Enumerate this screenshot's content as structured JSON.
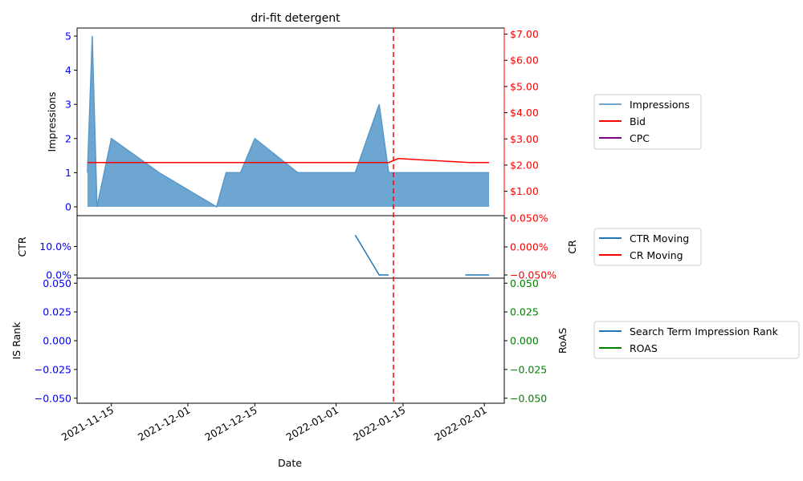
{
  "chart_data": [
    {
      "type": "area",
      "title": "dri-fit detergent",
      "ylabel_left": "Impressions",
      "y_left_ticks": [
        "0",
        "1",
        "2",
        "3",
        "4",
        "5"
      ],
      "y_right_ticks": [
        "$1.00",
        "$2.00",
        "$3.00",
        "$4.00",
        "$5.00",
        "$6.00",
        "$7.00"
      ],
      "series": [
        {
          "name": "Impressions",
          "color": "#6ca6d1",
          "axis": "left",
          "x": [
            "2021-11-10",
            "2021-11-11",
            "2021-11-12",
            "2021-11-15",
            "2021-11-25",
            "2021-12-07",
            "2021-12-09",
            "2021-12-12",
            "2021-12-15",
            "2021-12-24",
            "2022-01-05",
            "2022-01-10",
            "2022-01-12",
            "2022-01-28",
            "2022-02-02"
          ],
          "y": [
            1,
            5,
            0,
            2,
            1,
            0,
            1,
            1,
            2,
            1,
            1,
            3,
            1,
            1,
            1
          ]
        },
        {
          "name": "Bid",
          "color": "#ff0000",
          "axis": "right",
          "x": [
            "2021-11-10",
            "2022-01-12",
            "2022-01-14",
            "2022-01-29",
            "2022-02-02"
          ],
          "y": [
            2.1,
            2.1,
            2.25,
            2.1,
            2.1
          ]
        },
        {
          "name": "CPC",
          "color": "#800080",
          "axis": "right",
          "x": [],
          "y": []
        }
      ],
      "vline": {
        "x": "2022-01-13",
        "color": "#ff0000",
        "style": "dashed"
      }
    },
    {
      "type": "line",
      "ylabel_left": "CTR",
      "ylabel_right": "CR",
      "y_left_ticks": [
        "0.0%",
        "10.0%"
      ],
      "y_right_ticks": [
        "−0.050%",
        "0.000%",
        "0.050%"
      ],
      "series": [
        {
          "name": "CTR Moving",
          "color": "#1f77b4",
          "axis": "left",
          "segments": [
            {
              "x": [
                "2022-01-05",
                "2022-01-10",
                "2022-01-12"
              ],
              "y": [
                0.14,
                0.0,
                0.0
              ]
            },
            {
              "x": [
                "2022-01-28",
                "2022-02-02"
              ],
              "y": [
                0.0,
                0.0
              ]
            }
          ]
        },
        {
          "name": "CR Moving",
          "color": "#ff0000",
          "axis": "right",
          "x": [],
          "y": []
        }
      ]
    },
    {
      "type": "line",
      "ylabel_left": "IS Rank",
      "ylabel_right": "RoAS",
      "y_left_ticks": [
        "−0.050",
        "−0.025",
        "0.000",
        "0.025",
        "0.050"
      ],
      "y_right_ticks": [
        "−0.050",
        "−0.025",
        "0.000",
        "0.025",
        "0.050"
      ],
      "series": [
        {
          "name": "Search Term Impression Rank",
          "color": "#1f77b4",
          "x": [],
          "y": []
        },
        {
          "name": "ROAS",
          "color": "#008000",
          "x": [],
          "y": []
        }
      ]
    }
  ],
  "xlabel": "Date",
  "x_ticks": [
    "2021-11-15",
    "2021-12-01",
    "2021-12-15",
    "2022-01-01",
    "2022-01-15",
    "2022-02-01"
  ]
}
